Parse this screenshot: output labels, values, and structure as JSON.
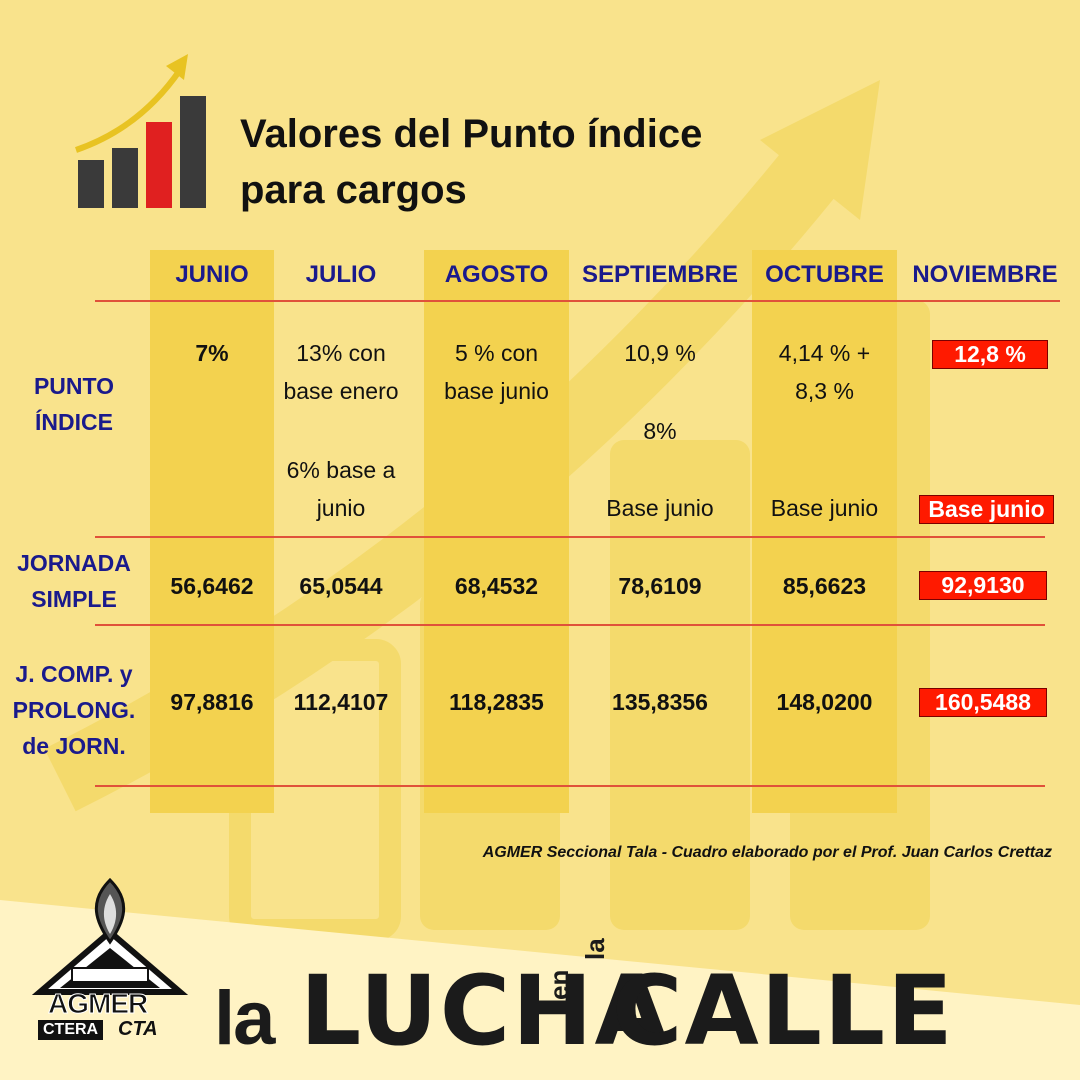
{
  "title": {
    "line1": "Valores del Punto índice",
    "line2": "para cargos"
  },
  "columns": [
    "JUNIO",
    "JULIO",
    "AGOSTO",
    "SEPTIEMBRE",
    "OCTUBRE",
    "NOVIEMBRE"
  ],
  "rows": {
    "punto_indice": {
      "label_line1": "PUNTO",
      "label_line2": "ÍNDICE",
      "junio": "7%",
      "julio_line1": "13% con",
      "julio_line2": "base enero",
      "julio_line3": "6% base a",
      "julio_line4": "junio",
      "agosto_line1": "5 % con",
      "agosto_line2": "base junio",
      "septiembre_line1": "10,9 %",
      "septiembre_line2": "8%",
      "septiembre_line3": "Base junio",
      "octubre_line1": "4,14 % +",
      "octubre_line2": "8,3 %",
      "octubre_line3": "Base junio",
      "noviembre_line1": "12,8 %",
      "noviembre_line2": "Base junio"
    },
    "jornada_simple": {
      "label_line1": "JORNADA",
      "label_line2": "SIMPLE",
      "values": [
        "56,6462",
        "65,0544",
        "68,4532",
        "78,6109",
        "85,6623",
        "92,9130"
      ]
    },
    "jornada_completa": {
      "label_line1": "J. COMP. y",
      "label_line2": "PROLONG.",
      "label_line3": "de JORN.",
      "values": [
        "97,8816",
        "112,4107",
        "118,2835",
        "135,8356",
        "148,0200",
        "160,5488"
      ]
    }
  },
  "credit": "AGMER Seccional Tala - Cuadro elaborado por el Prof. Juan Carlos Crettaz",
  "logo": {
    "name": "AGMER",
    "ctera": "CTERA",
    "cta": "CTA"
  },
  "slogan": {
    "la": "la",
    "lucha": "LUCHA",
    "en": "en",
    "la2": "la",
    "calle": "CALLE"
  },
  "colors": {
    "background": "#f9e38c",
    "band": "#f3d24f",
    "header": "#1a1a8c",
    "highlight": "#ff1a00",
    "rule": "#e0513a"
  }
}
